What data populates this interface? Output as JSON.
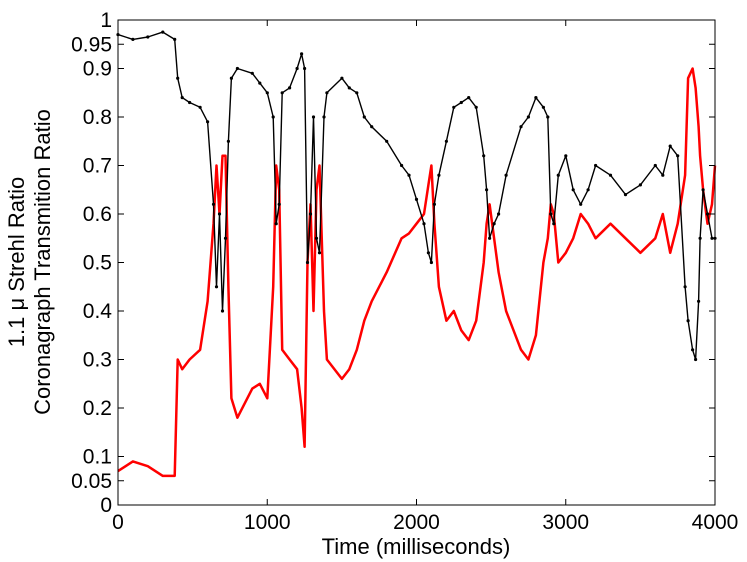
{
  "chart_data": {
    "type": "line",
    "title": "",
    "xlabel": "Time (milliseconds)",
    "ylabel_line1": "1.1 μ Strehl Ratio",
    "ylabel_line2": "Coronagraph Transmition Ratio",
    "xlim": [
      0,
      4000
    ],
    "ylim": [
      0,
      1
    ],
    "xticks": [
      0,
      1000,
      2000,
      3000,
      4000
    ],
    "xtick_labels": [
      "0",
      "1000",
      "2000",
      "3000",
      "4000"
    ],
    "yticks": [
      0,
      0.05,
      0.1,
      0.2,
      0.3,
      0.4,
      0.5,
      0.6,
      0.7,
      0.8,
      0.9,
      0.95,
      1
    ],
    "ytick_labels": [
      "0",
      "0.05",
      "0.1",
      "0.2",
      "0.3",
      "0.4",
      "0.5",
      "0.6",
      "0.7",
      "0.8",
      "0.9",
      "0.95",
      "1"
    ],
    "grid": false,
    "legend": "none",
    "series": [
      {
        "color": "#000000",
        "style": "line with dot markers",
        "x": [
          0,
          100,
          200,
          300,
          380,
          400,
          430,
          480,
          550,
          600,
          640,
          660,
          680,
          700,
          720,
          740,
          760,
          800,
          900,
          950,
          1000,
          1040,
          1060,
          1080,
          1100,
          1150,
          1200,
          1230,
          1250,
          1270,
          1290,
          1310,
          1330,
          1350,
          1380,
          1400,
          1500,
          1550,
          1600,
          1650,
          1700,
          1800,
          1900,
          1950,
          2000,
          2050,
          2080,
          2100,
          2120,
          2150,
          2200,
          2250,
          2300,
          2350,
          2400,
          2450,
          2470,
          2490,
          2520,
          2550,
          2600,
          2700,
          2750,
          2800,
          2850,
          2880,
          2900,
          2920,
          2950,
          3000,
          3050,
          3100,
          3150,
          3200,
          3300,
          3400,
          3500,
          3600,
          3650,
          3700,
          3750,
          3800,
          3820,
          3850,
          3870,
          3890,
          3900,
          3920,
          3950,
          3980,
          4000
        ],
        "y": [
          0.97,
          0.96,
          0.965,
          0.975,
          0.96,
          0.88,
          0.84,
          0.83,
          0.82,
          0.79,
          0.62,
          0.45,
          0.6,
          0.4,
          0.55,
          0.75,
          0.88,
          0.9,
          0.89,
          0.87,
          0.85,
          0.8,
          0.58,
          0.62,
          0.85,
          0.86,
          0.9,
          0.93,
          0.9,
          0.5,
          0.6,
          0.8,
          0.55,
          0.52,
          0.8,
          0.85,
          0.88,
          0.86,
          0.85,
          0.8,
          0.78,
          0.75,
          0.7,
          0.68,
          0.63,
          0.58,
          0.52,
          0.5,
          0.62,
          0.68,
          0.75,
          0.82,
          0.83,
          0.84,
          0.82,
          0.72,
          0.65,
          0.55,
          0.58,
          0.6,
          0.68,
          0.78,
          0.8,
          0.84,
          0.82,
          0.8,
          0.6,
          0.58,
          0.68,
          0.72,
          0.65,
          0.62,
          0.65,
          0.7,
          0.68,
          0.64,
          0.66,
          0.7,
          0.68,
          0.74,
          0.72,
          0.45,
          0.38,
          0.32,
          0.3,
          0.42,
          0.55,
          0.65,
          0.6,
          0.55,
          0.55
        ]
      },
      {
        "color": "#ff0000",
        "style": "line",
        "x": [
          0,
          100,
          200,
          300,
          380,
          400,
          430,
          480,
          550,
          600,
          640,
          660,
          680,
          700,
          720,
          740,
          760,
          800,
          900,
          950,
          1000,
          1040,
          1060,
          1080,
          1100,
          1150,
          1200,
          1230,
          1250,
          1270,
          1290,
          1310,
          1330,
          1350,
          1380,
          1400,
          1500,
          1550,
          1600,
          1650,
          1700,
          1800,
          1900,
          1950,
          2000,
          2050,
          2080,
          2100,
          2120,
          2150,
          2200,
          2250,
          2300,
          2350,
          2400,
          2450,
          2470,
          2490,
          2520,
          2550,
          2600,
          2700,
          2750,
          2800,
          2850,
          2880,
          2900,
          2920,
          2950,
          3000,
          3050,
          3100,
          3150,
          3200,
          3300,
          3400,
          3500,
          3600,
          3650,
          3700,
          3750,
          3800,
          3820,
          3850,
          3870,
          3890,
          3900,
          3920,
          3950,
          3980,
          4000
        ],
        "y": [
          0.07,
          0.09,
          0.08,
          0.06,
          0.06,
          0.3,
          0.28,
          0.3,
          0.32,
          0.42,
          0.58,
          0.7,
          0.6,
          0.72,
          0.72,
          0.45,
          0.22,
          0.18,
          0.24,
          0.25,
          0.22,
          0.45,
          0.7,
          0.65,
          0.32,
          0.3,
          0.28,
          0.2,
          0.12,
          0.5,
          0.62,
          0.4,
          0.65,
          0.7,
          0.4,
          0.3,
          0.26,
          0.28,
          0.32,
          0.38,
          0.42,
          0.48,
          0.55,
          0.56,
          0.58,
          0.6,
          0.66,
          0.7,
          0.58,
          0.45,
          0.38,
          0.4,
          0.36,
          0.34,
          0.38,
          0.5,
          0.58,
          0.62,
          0.55,
          0.48,
          0.4,
          0.32,
          0.3,
          0.35,
          0.5,
          0.55,
          0.62,
          0.6,
          0.5,
          0.52,
          0.55,
          0.6,
          0.58,
          0.55,
          0.58,
          0.55,
          0.52,
          0.55,
          0.6,
          0.52,
          0.58,
          0.68,
          0.88,
          0.9,
          0.86,
          0.78,
          0.72,
          0.65,
          0.58,
          0.62,
          0.7
        ]
      }
    ]
  }
}
